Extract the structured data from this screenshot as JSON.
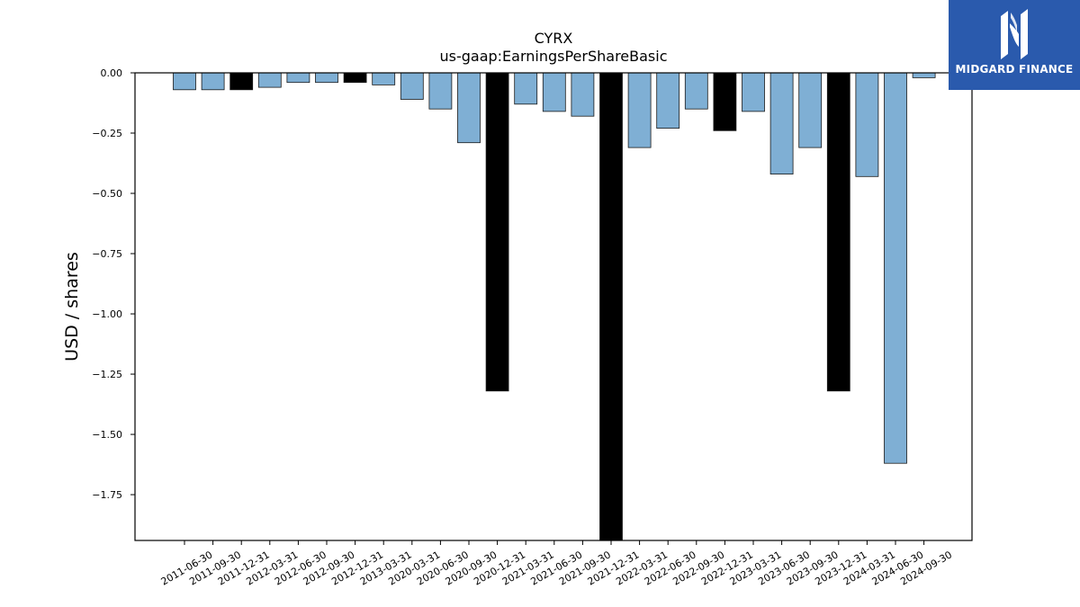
{
  "chart_data": {
    "type": "bar",
    "title": "CYRX",
    "subtitle": "us-gaap:EarningsPerShareBasic",
    "xlabel": "",
    "ylabel": "USD / shares",
    "ylim": [
      -1.94,
      0.0
    ],
    "yticks": [
      0.0,
      -0.25,
      -0.5,
      -0.75,
      -1.0,
      -1.25,
      -1.5,
      -1.75
    ],
    "ytick_labels": [
      "0.00",
      "−0.25",
      "−0.50",
      "−0.75",
      "−1.00",
      "−1.25",
      "−1.50",
      "−1.75"
    ],
    "grid": false,
    "categories": [
      "2011-06-30",
      "2011-09-30",
      "2011-12-31",
      "2012-03-31",
      "2012-06-30",
      "2012-09-30",
      "2012-12-31",
      "2013-03-31",
      "2020-03-31",
      "2020-06-30",
      "2020-09-30",
      "2020-12-31",
      "2021-03-31",
      "2021-06-30",
      "2021-09-30",
      "2021-12-31",
      "2022-03-31",
      "2022-06-30",
      "2022-09-30",
      "2022-12-31",
      "2023-03-31",
      "2023-06-30",
      "2023-09-30",
      "2023-12-31",
      "2024-03-31",
      "2024-06-30",
      "2024-09-30"
    ],
    "values": [
      -0.07,
      -0.07,
      -0.07,
      -0.06,
      -0.04,
      -0.04,
      -0.04,
      -0.05,
      -0.11,
      -0.15,
      -0.29,
      -1.32,
      -0.13,
      -0.16,
      -0.18,
      -1.94,
      -0.31,
      -0.23,
      -0.15,
      -0.24,
      -0.16,
      -0.42,
      -0.31,
      -1.32,
      -0.43,
      -1.62,
      -0.02
    ],
    "annual": [
      false,
      false,
      true,
      false,
      false,
      false,
      true,
      false,
      false,
      false,
      false,
      true,
      false,
      false,
      false,
      true,
      false,
      false,
      false,
      true,
      false,
      false,
      false,
      true,
      false,
      false,
      false
    ],
    "colors": {
      "quarterly": "#7fafd4",
      "annual": "#000000",
      "edge": "#1a1a1a"
    }
  },
  "logo": {
    "text": "MIDGARD FINANCE",
    "background": "#2a5aad"
  }
}
